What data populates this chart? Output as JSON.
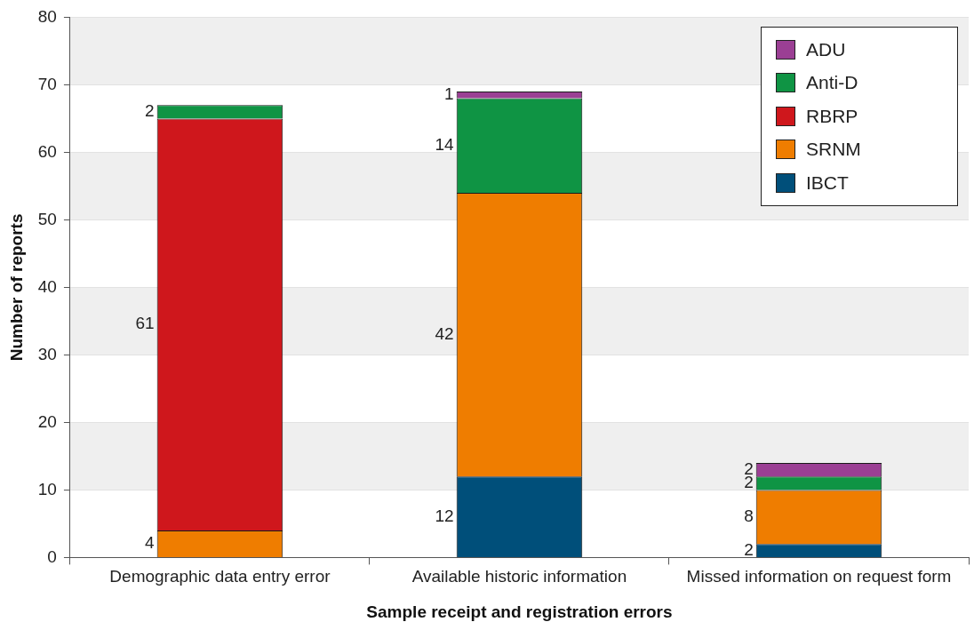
{
  "chart_data": {
    "type": "bar",
    "stacked": true,
    "xlabel": "Sample receipt and registration errors",
    "ylabel": "Number of reports",
    "categories": [
      "Demographic data entry error",
      "Available historic information",
      "Missed information on request form"
    ],
    "series": [
      {
        "name": "IBCT",
        "color": "#004f7a",
        "values": [
          null,
          12,
          2
        ],
        "value_labels": [
          null,
          "12",
          "2"
        ]
      },
      {
        "name": "SRNM",
        "color": "#ef7d00",
        "values": [
          4,
          42,
          8
        ],
        "value_labels": [
          "4",
          "42",
          "8"
        ]
      },
      {
        "name": "RBRP",
        "color": "#cf171c",
        "values": [
          61,
          null,
          null
        ],
        "value_labels": [
          "61",
          null,
          null
        ]
      },
      {
        "name": "Anti-D",
        "color": "#0f9444",
        "values": [
          2,
          14,
          2
        ],
        "value_labels": [
          "2",
          "14",
          "2"
        ]
      },
      {
        "name": "ADU",
        "color": "#9b3f94",
        "values": [
          null,
          1,
          2
        ],
        "value_labels": [
          null,
          "1",
          "2"
        ]
      }
    ],
    "ylim": [
      0,
      80
    ],
    "yticks": [
      0,
      10,
      20,
      30,
      40,
      50,
      60,
      70,
      80
    ],
    "grid": "y",
    "legend": "top right"
  }
}
